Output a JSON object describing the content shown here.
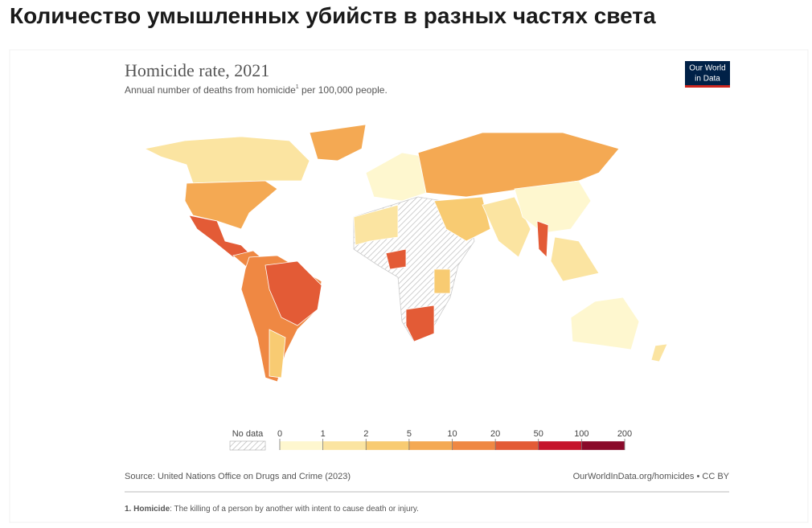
{
  "header": {
    "title": "Количество умышленных убийств в разных частях света"
  },
  "chart_data": {
    "type": "choropleth",
    "title": "Homicide rate, 2021",
    "subtitle": [
      "Annual number of deaths from homicide",
      "1",
      " per 100,000 people."
    ],
    "logo": [
      "Our World",
      "in Data"
    ],
    "legend": {
      "no_data_label": "No data",
      "ticks": [
        0,
        1,
        2,
        5,
        10,
        20,
        50,
        100,
        200
      ],
      "colors": [
        "#fef7cf",
        "#fbe4a1",
        "#f8cb72",
        "#f4a953",
        "#ef8843",
        "#e35b36",
        "#c5142b",
        "#8a0a2a"
      ]
    },
    "source": "Source: United Nations Office on Drugs and Crime (2023)",
    "url": "OurWorldInData.org/homicides • CC BY",
    "footnote": [
      "1. Homicide",
      ": The killing of a person by another with intent to cause death or injury."
    ]
  }
}
